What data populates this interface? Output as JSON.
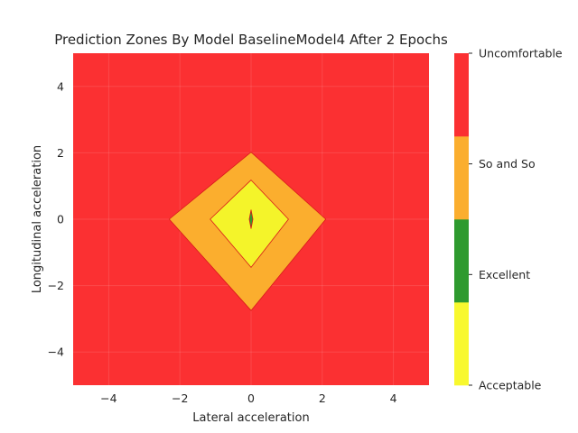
{
  "chart_data": {
    "type": "contour",
    "title": "Prediction Zones By Model BaselineModel4 After 2 Epochs",
    "xlabel": "Lateral acceleration",
    "ylabel": "Longitudinal acceleration",
    "xlim": [
      -5,
      5
    ],
    "ylim": [
      -5,
      5
    ],
    "xticks": [
      -4,
      -2,
      0,
      2,
      4
    ],
    "yticks": [
      -4,
      -2,
      0,
      2,
      4
    ],
    "grid": true,
    "background_class": "Uncomfortable",
    "zones": [
      {
        "label": "So and So",
        "color": "#fbae2e",
        "polygon": [
          [
            -2.3,
            0.0
          ],
          [
            0.0,
            2.02
          ],
          [
            2.1,
            0.0
          ],
          [
            0.0,
            -2.75
          ]
        ]
      },
      {
        "label": "Acceptable",
        "color": "#f4f42a",
        "polygon": [
          [
            -1.15,
            0.0
          ],
          [
            0.0,
            1.18
          ],
          [
            1.05,
            0.0
          ],
          [
            0.0,
            -1.45
          ]
        ]
      },
      {
        "label": "Excellent",
        "color": "#2f9a2f",
        "polygon": [
          [
            -0.05,
            0.0
          ],
          [
            0.0,
            0.28
          ],
          [
            0.05,
            0.0
          ],
          [
            0.0,
            -0.28
          ]
        ]
      }
    ],
    "colorbar": {
      "labels": [
        "Acceptable",
        "Excellent",
        "So and So",
        "Uncomfortable"
      ],
      "colors": [
        "#f8f82e",
        "#2e9a2e",
        "#fbae2e",
        "#fb3032"
      ]
    }
  }
}
